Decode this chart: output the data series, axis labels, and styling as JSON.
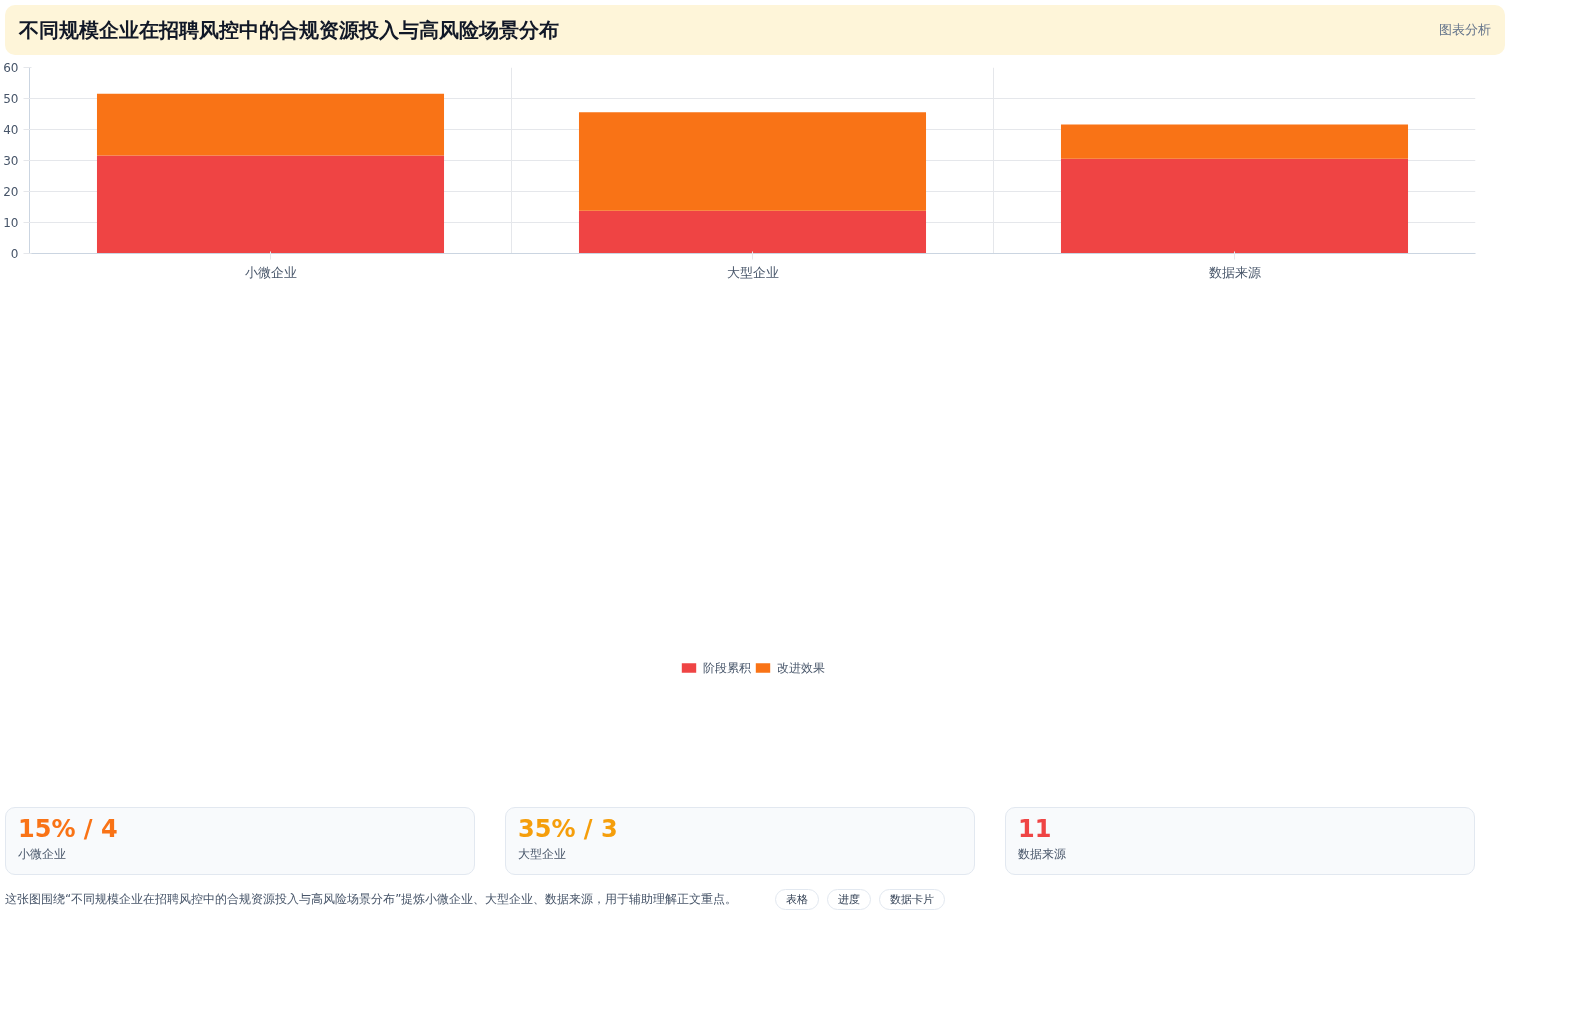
{
  "chart_data": {
    "type": "bar",
    "title": "不同规模企业在招聘风控中的合规资源投入与高风险场景分布",
    "categories": [
      "小微企业",
      "大型企业",
      "数据来源"
    ],
    "stacked": true,
    "series": [
      {
        "name": "阶段累积",
        "color": "#ef4444",
        "values": [
          31.6,
          13.8,
          30.6
        ]
      },
      {
        "name": "改进效果",
        "color": "#f97316",
        "values": [
          19.9,
          31.8,
          11.0
        ]
      }
    ],
    "ylim": [
      0,
      60
    ],
    "yticks": [
      0,
      10,
      20,
      30,
      40,
      50,
      60
    ],
    "grid": true,
    "legend": "bottom",
    "annotations": [
      "图表分析",
      "15% / 4",
      "小微企业",
      "35% / 3",
      "大型企业",
      "11",
      "数据来源",
      "这张图围绕“不同规模企业在招聘风控中的合规资源投入与高风险场景分布”提炼小微企业、大型企业、数据来源，用于辅助理解正文重点。",
      "表格",
      "进度",
      "数据卡片"
    ]
  }
}
